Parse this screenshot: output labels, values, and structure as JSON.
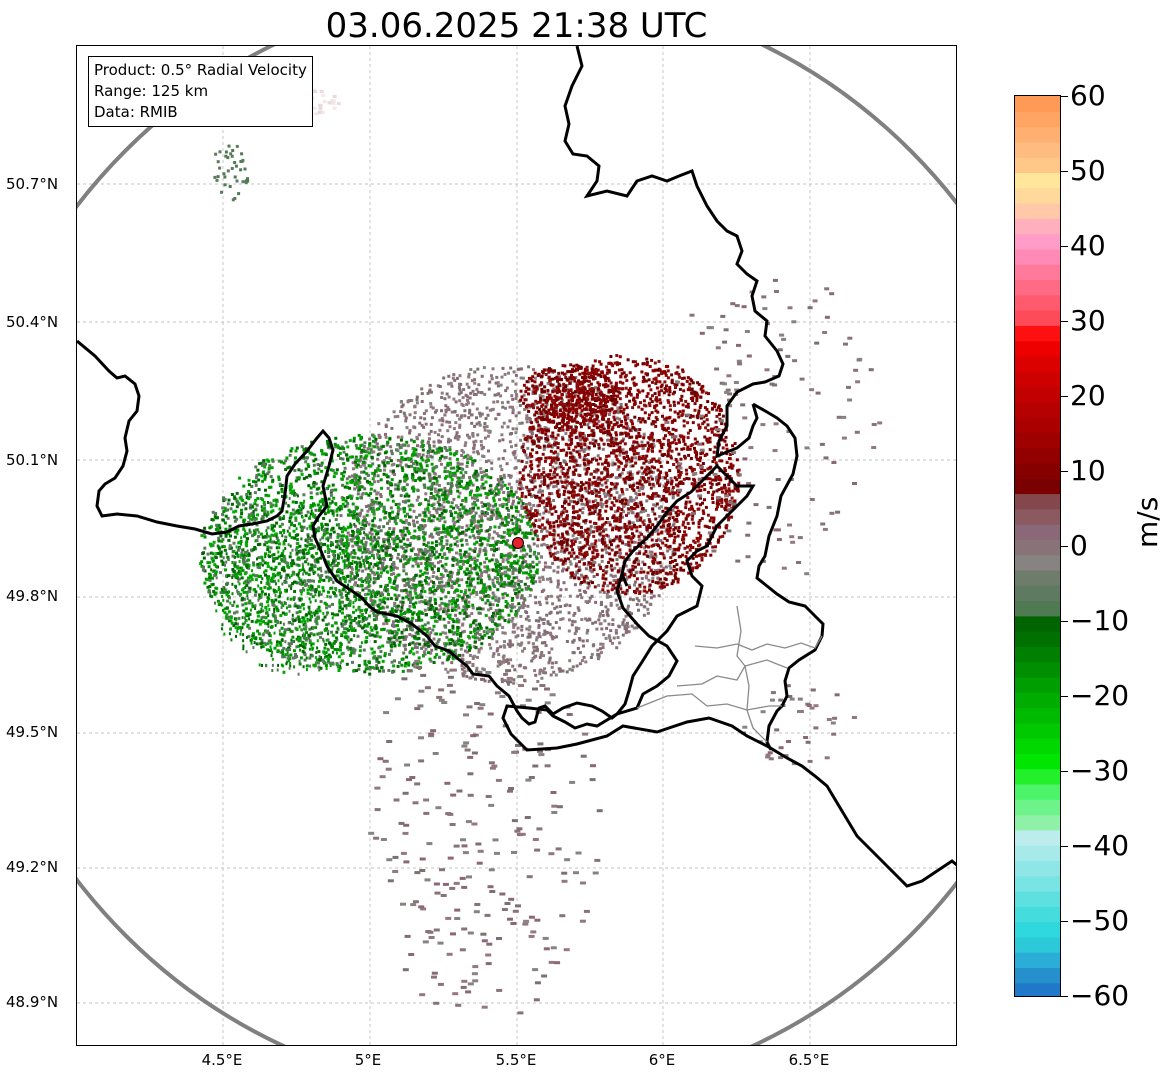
{
  "title": "03.06.2025 21:38 UTC",
  "info": {
    "product": "Product: 0.5° Radial Velocity",
    "range": "Range: 125 km",
    "data": "Data: RMIB"
  },
  "map": {
    "x_ticks": [
      "4.5°E",
      "5°E",
      "5.5°E",
      "6°E",
      "6.5°E"
    ],
    "y_ticks": [
      "50.7°N",
      "50.4°N",
      "50.1°N",
      "49.8°N",
      "49.5°N",
      "49.2°N",
      "48.9°N"
    ],
    "radar_site": {
      "lon": 5.506,
      "lat": 49.914
    },
    "range_ring_color": "#808080",
    "site_marker_color": "#e8202a"
  },
  "colorbar": {
    "unit": "m/s",
    "min": -60,
    "max": 60,
    "ticks": [
      "60",
      "50",
      "40",
      "30",
      "20",
      "10",
      "0",
      "−10",
      "−20",
      "−30",
      "−40",
      "−50",
      "−60"
    ],
    "tick_values": [
      60,
      50,
      40,
      30,
      20,
      10,
      0,
      -10,
      -20,
      -30,
      -40,
      -50,
      -60
    ],
    "colors_bottom_to_top": [
      "#1f78c8",
      "#2690cc",
      "#2aadd6",
      "#2ccad9",
      "#2fd8dc",
      "#44dcdc",
      "#5ee0e0",
      "#78e4e4",
      "#90e6e6",
      "#a6eaea",
      "#bcecec",
      "#8ff0a8",
      "#6ef28a",
      "#4cf46a",
      "#22f02a",
      "#00e600",
      "#00d800",
      "#00c900",
      "#00ba00",
      "#00ac00",
      "#009e00",
      "#008f00",
      "#008000",
      "#007000",
      "#006400",
      "#4f7a52",
      "#5e7a60",
      "#6e7c6c",
      "#868380",
      "#887378",
      "#8a6878",
      "#8a5a60",
      "#84484c",
      "#7a0000",
      "#860000",
      "#920000",
      "#9e0000",
      "#aa0000",
      "#b60000",
      "#c20000",
      "#ce0000",
      "#dc0000",
      "#ee0000",
      "#ff1010",
      "#ff4a5a",
      "#ff5a6e",
      "#ff6a84",
      "#ff7a9a",
      "#ff8ab6",
      "#ff9cc8",
      "#ffb0bc",
      "#ffc8a8",
      "#ffd89c",
      "#ffe69a",
      "#ffc888",
      "#ffbc80",
      "#ffb070",
      "#ffa462",
      "#ff9a56"
    ]
  }
}
